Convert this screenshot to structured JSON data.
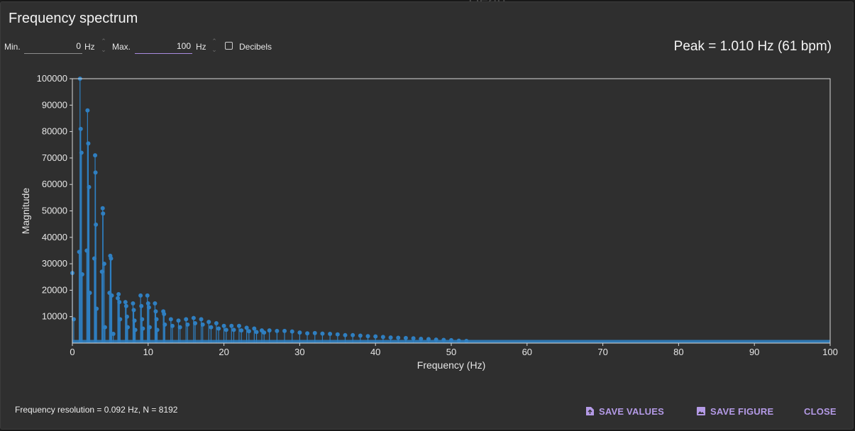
{
  "dialog": {
    "title": "Frequency spectrum",
    "peak_text": "Peak = 1.010 Hz (61 bpm)",
    "resolution_text": "Frequency resolution = 0.092 Hz, N = 8192"
  },
  "controls": {
    "min_label": "Min.",
    "min_value": "0",
    "min_unit": "Hz",
    "max_label": "Max.",
    "max_value": "100",
    "max_unit": "Hz",
    "decibels_label": "Decibels",
    "decibels_checked": false
  },
  "buttons": {
    "save_values": "SAVE VALUES",
    "save_figure": "SAVE FIGURE",
    "close": "CLOSE",
    "accent_color": "#b49ae6"
  },
  "backdrop": {
    "ghost_text": "Heart"
  },
  "chart_data": {
    "type": "stem",
    "xlabel": "Frequency (Hz)",
    "ylabel": "Magnitude",
    "xlim": [
      0,
      100
    ],
    "ylim": [
      0,
      100000
    ],
    "xticks": [
      0,
      10,
      20,
      30,
      40,
      50,
      60,
      70,
      80,
      90,
      100
    ],
    "yticks": [
      10000,
      20000,
      30000,
      40000,
      50000,
      60000,
      70000,
      80000,
      90000,
      100000
    ],
    "color": "#2f7fc1",
    "grid": false,
    "peaks": [
      {
        "x": 0.0,
        "y": 26500
      },
      {
        "x": 0.18,
        "y": 9000
      },
      {
        "x": 0.9,
        "y": 34500
      },
      {
        "x": 1.01,
        "y": 100000
      },
      {
        "x": 1.1,
        "y": 81000
      },
      {
        "x": 1.2,
        "y": 72000
      },
      {
        "x": 1.3,
        "y": 26000
      },
      {
        "x": 1.9,
        "y": 35000
      },
      {
        "x": 2.0,
        "y": 88000
      },
      {
        "x": 2.1,
        "y": 75500
      },
      {
        "x": 2.2,
        "y": 59000
      },
      {
        "x": 2.3,
        "y": 19000
      },
      {
        "x": 2.9,
        "y": 32000
      },
      {
        "x": 3.0,
        "y": 71000
      },
      {
        "x": 3.05,
        "y": 64500
      },
      {
        "x": 3.1,
        "y": 44800
      },
      {
        "x": 3.2,
        "y": 13000
      },
      {
        "x": 3.9,
        "y": 27000
      },
      {
        "x": 4.0,
        "y": 51000
      },
      {
        "x": 4.05,
        "y": 49000
      },
      {
        "x": 4.2,
        "y": 30000
      },
      {
        "x": 4.3,
        "y": 6000
      },
      {
        "x": 4.9,
        "y": 19000
      },
      {
        "x": 5.0,
        "y": 33000
      },
      {
        "x": 5.1,
        "y": 32000
      },
      {
        "x": 5.2,
        "y": 18000
      },
      {
        "x": 5.4,
        "y": 3500
      },
      {
        "x": 6.0,
        "y": 17000
      },
      {
        "x": 6.1,
        "y": 18500
      },
      {
        "x": 6.2,
        "y": 15500
      },
      {
        "x": 6.3,
        "y": 9000
      },
      {
        "x": 7.0,
        "y": 15500
      },
      {
        "x": 7.1,
        "y": 14000
      },
      {
        "x": 7.2,
        "y": 10000
      },
      {
        "x": 7.3,
        "y": 6000
      },
      {
        "x": 8.0,
        "y": 15000
      },
      {
        "x": 8.1,
        "y": 12500
      },
      {
        "x": 8.2,
        "y": 8500
      },
      {
        "x": 8.3,
        "y": 5000
      },
      {
        "x": 9.0,
        "y": 18000
      },
      {
        "x": 9.1,
        "y": 14000
      },
      {
        "x": 9.2,
        "y": 9000
      },
      {
        "x": 9.3,
        "y": 5500
      },
      {
        "x": 9.9,
        "y": 18000
      },
      {
        "x": 10.0,
        "y": 15000
      },
      {
        "x": 10.1,
        "y": 13500
      },
      {
        "x": 10.2,
        "y": 6000
      },
      {
        "x": 10.9,
        "y": 15000
      },
      {
        "x": 11.0,
        "y": 12000
      },
      {
        "x": 11.1,
        "y": 9000
      },
      {
        "x": 11.2,
        "y": 5000
      },
      {
        "x": 12.0,
        "y": 12000
      },
      {
        "x": 12.1,
        "y": 11000
      },
      {
        "x": 12.2,
        "y": 7000
      },
      {
        "x": 13.0,
        "y": 9000
      },
      {
        "x": 13.2,
        "y": 6500
      },
      {
        "x": 14.0,
        "y": 8500
      },
      {
        "x": 14.2,
        "y": 6000
      },
      {
        "x": 15.0,
        "y": 9000
      },
      {
        "x": 15.2,
        "y": 7000
      },
      {
        "x": 16.0,
        "y": 9500
      },
      {
        "x": 16.2,
        "y": 7500
      },
      {
        "x": 17.0,
        "y": 9000
      },
      {
        "x": 17.2,
        "y": 7000
      },
      {
        "x": 18.0,
        "y": 8000
      },
      {
        "x": 18.3,
        "y": 6000
      },
      {
        "x": 19.0,
        "y": 7500
      },
      {
        "x": 19.3,
        "y": 5500
      },
      {
        "x": 20.0,
        "y": 6500
      },
      {
        "x": 20.3,
        "y": 5000
      },
      {
        "x": 21.0,
        "y": 6500
      },
      {
        "x": 21.3,
        "y": 5000
      },
      {
        "x": 22.0,
        "y": 6500
      },
      {
        "x": 22.3,
        "y": 4800
      },
      {
        "x": 23.0,
        "y": 5800
      },
      {
        "x": 23.3,
        "y": 4500
      },
      {
        "x": 24.0,
        "y": 5500
      },
      {
        "x": 24.3,
        "y": 4200
      },
      {
        "x": 25.0,
        "y": 4800
      },
      {
        "x": 25.3,
        "y": 4000
      },
      {
        "x": 26.0,
        "y": 4800
      },
      {
        "x": 27.0,
        "y": 4600
      },
      {
        "x": 28.0,
        "y": 4600
      },
      {
        "x": 29.0,
        "y": 4400
      },
      {
        "x": 30.0,
        "y": 4000
      },
      {
        "x": 31.0,
        "y": 3700
      },
      {
        "x": 32.0,
        "y": 3800
      },
      {
        "x": 33.0,
        "y": 3600
      },
      {
        "x": 34.0,
        "y": 3500
      },
      {
        "x": 35.0,
        "y": 3300
      },
      {
        "x": 36.0,
        "y": 3000
      },
      {
        "x": 37.0,
        "y": 3000
      },
      {
        "x": 38.0,
        "y": 2800
      },
      {
        "x": 39.0,
        "y": 2600
      },
      {
        "x": 40.0,
        "y": 2500
      },
      {
        "x": 41.0,
        "y": 2300
      },
      {
        "x": 42.0,
        "y": 2100
      },
      {
        "x": 43.0,
        "y": 2000
      },
      {
        "x": 44.0,
        "y": 1900
      },
      {
        "x": 45.0,
        "y": 1800
      },
      {
        "x": 46.0,
        "y": 1600
      },
      {
        "x": 47.0,
        "y": 1500
      },
      {
        "x": 48.0,
        "y": 1300
      },
      {
        "x": 49.0,
        "y": 1200
      },
      {
        "x": 50.0,
        "y": 1100
      },
      {
        "x": 51.0,
        "y": 900
      },
      {
        "x": 52.0,
        "y": 800
      }
    ],
    "noise_floor": 1200
  }
}
